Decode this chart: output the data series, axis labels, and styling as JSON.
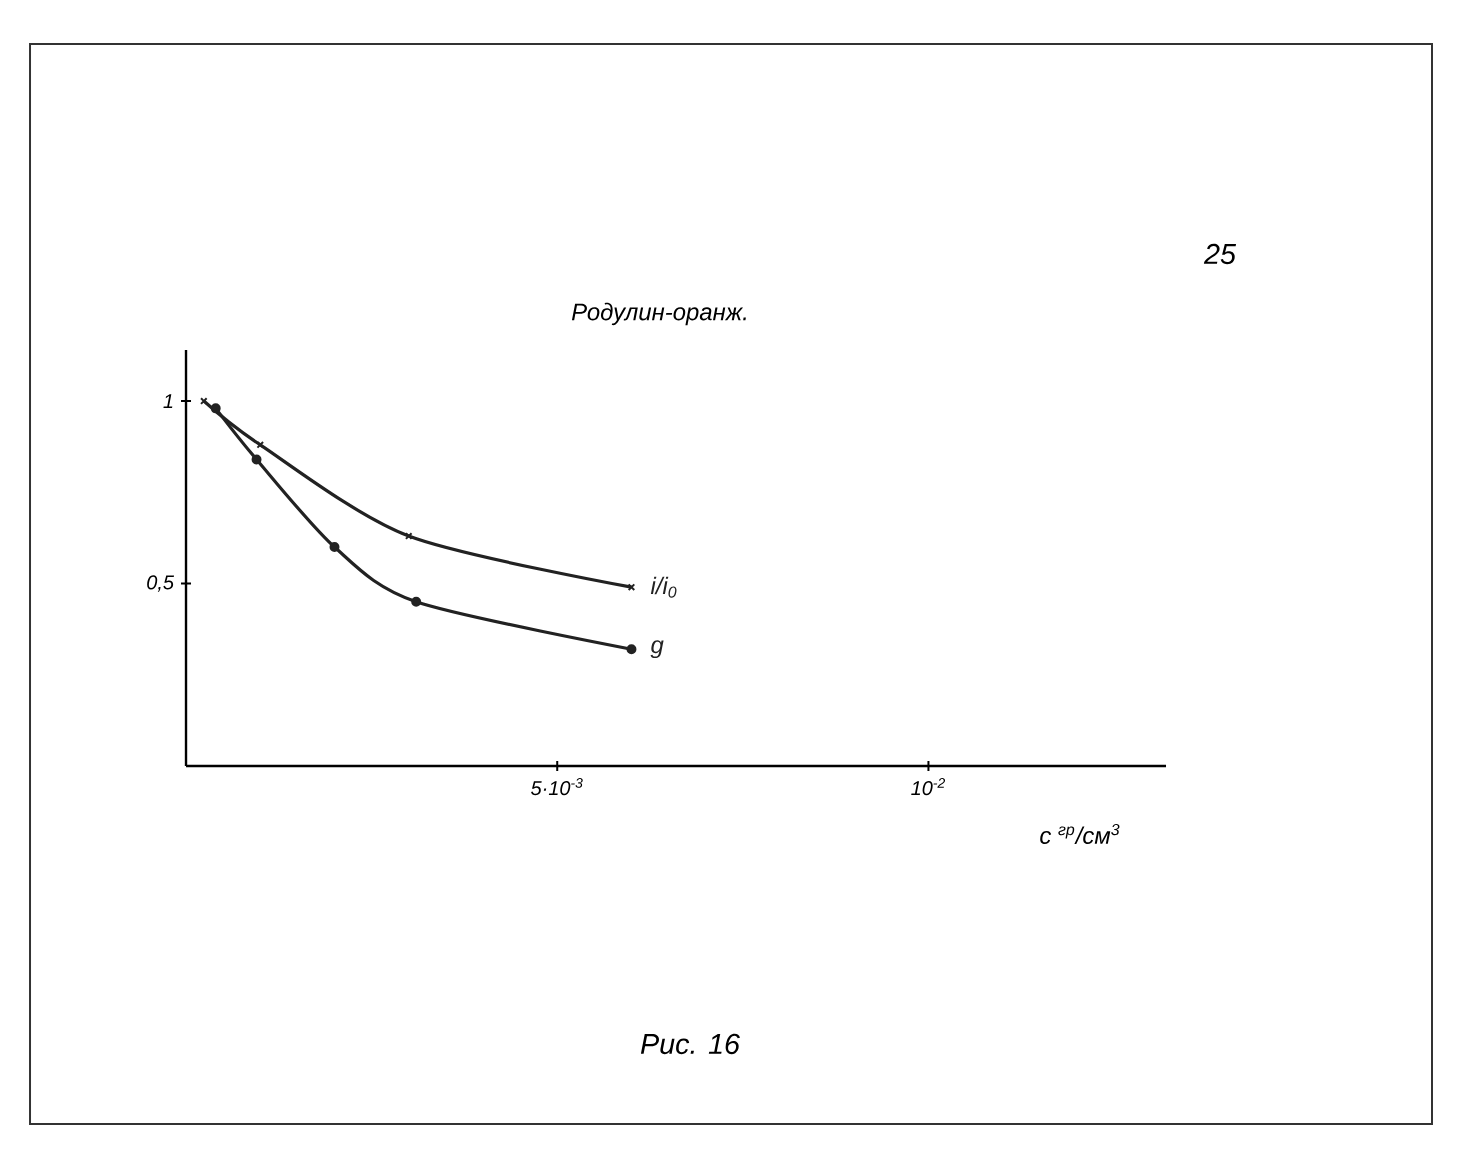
{
  "chart_data": {
    "type": "line",
    "title": "Родулин-оранж.",
    "xlabel": "c $^{гр}$/см$^{3}$",
    "annotations": [
      "Рис. 16",
      "25"
    ],
    "xlim": [
      0,
      0.0132
    ],
    "ylim": [
      0,
      1.14
    ],
    "xticks": [
      {
        "value": 0.005,
        "label": "5·10$^{-3}$"
      },
      {
        "value": 0.01,
        "label": "10$^{-2}$"
      }
    ],
    "yticks": [
      {
        "value": 0.5,
        "label": "0,5"
      },
      {
        "value": 1,
        "label": "1"
      }
    ],
    "series": [
      {
        "name": "i/i$_{0}$",
        "color": "#222222",
        "marker": "cross",
        "x": [
          0.00024,
          0.001,
          0.003,
          0.006
        ],
        "values": [
          1.0,
          0.88,
          0.63,
          0.49
        ]
      },
      {
        "name": "g",
        "color": "#222222",
        "marker": "circle",
        "x": [
          0.0004,
          0.00095,
          0.002,
          0.0031,
          0.006
        ],
        "values": [
          0.98,
          0.84,
          0.6,
          0.45,
          0.32
        ]
      }
    ]
  }
}
